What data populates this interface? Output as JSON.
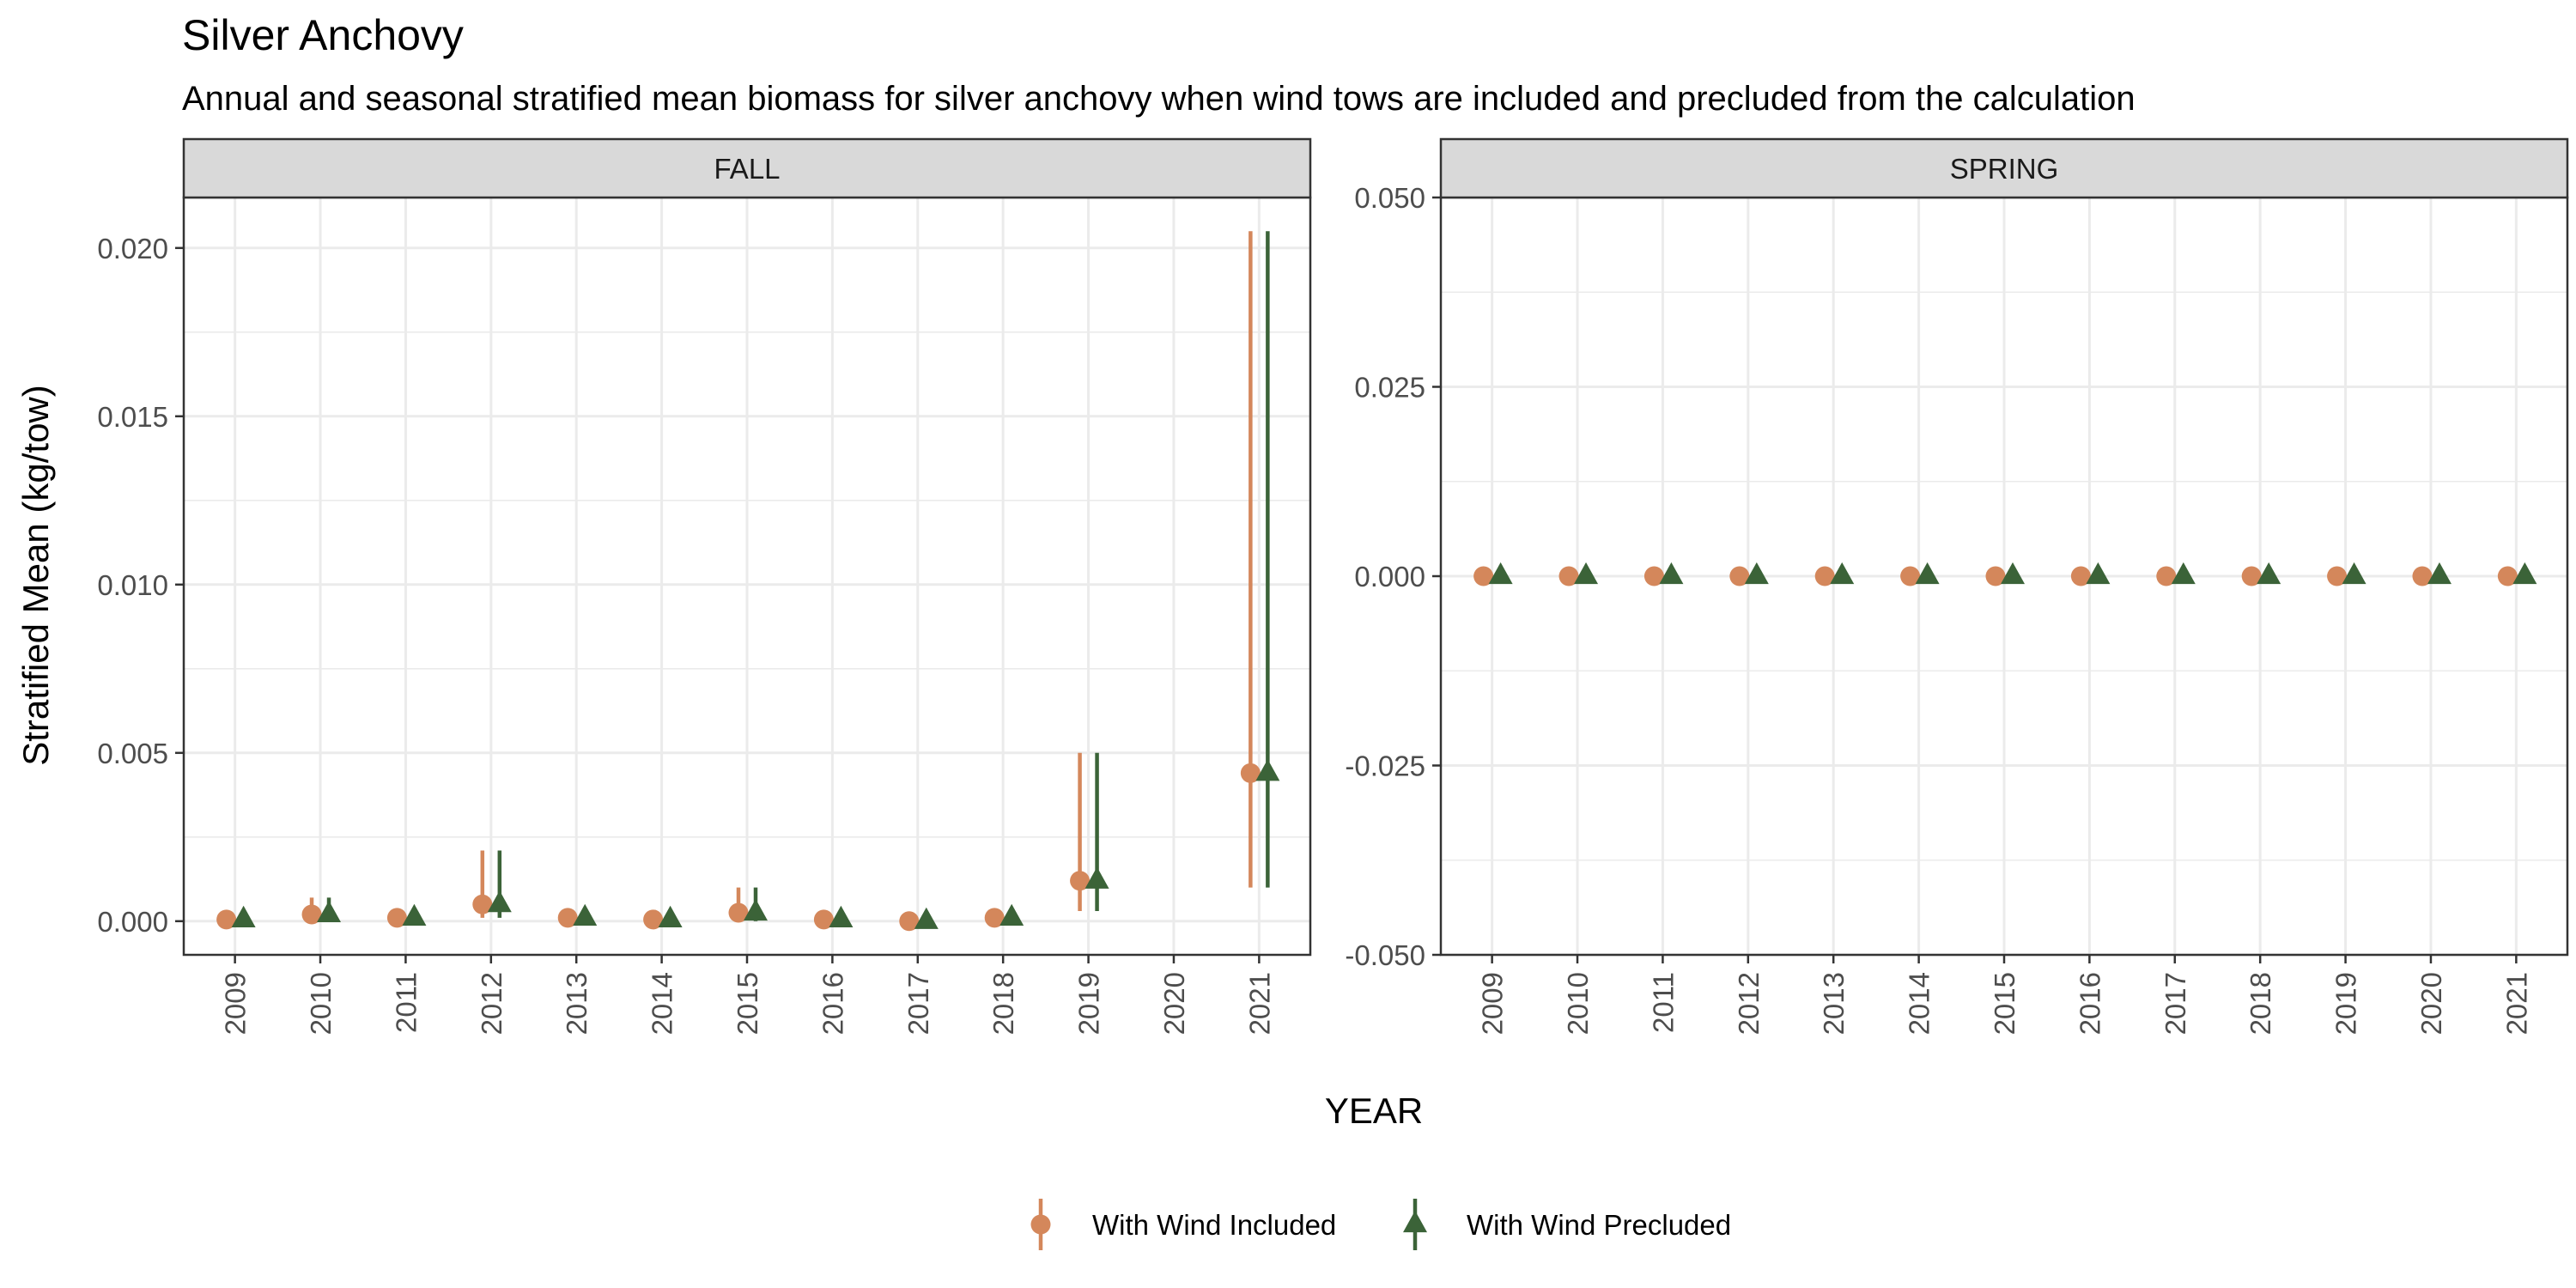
{
  "title": "Silver Anchovy",
  "subtitle": "Annual and seasonal stratified mean biomass for silver anchovy when wind tows are included and precluded from the calculation",
  "colors": {
    "included": "#D4875B",
    "precluded": "#3B6338",
    "strip_fill": "#D9D9D9",
    "grid": "#EBEBEB",
    "frame": "#333333",
    "tick_text": "#4D4D4D"
  },
  "chart_data": {
    "type": "scatter",
    "xlabel": "YEAR",
    "ylabel": "Stratified Mean (kg/tow)",
    "legend": {
      "position": "bottom",
      "entries": [
        "With Wind Included",
        "With Wind Precluded"
      ]
    },
    "grid": true,
    "panels": [
      {
        "name": "FALL",
        "ylim": [
          -0.001,
          0.0215
        ],
        "yticks": [
          0.0,
          0.005,
          0.01,
          0.015,
          0.02
        ],
        "ytick_labels": [
          "0.000",
          "0.005",
          "0.010",
          "0.015",
          "0.020"
        ],
        "x": [
          "2009",
          "2010",
          "2011",
          "2012",
          "2013",
          "2014",
          "2015",
          "2016",
          "2017",
          "2018",
          "2019",
          "2020",
          "2021"
        ],
        "series": [
          {
            "name": "With Wind Included",
            "marker": "circle",
            "values": [
              5e-05,
              0.0002,
              0.0001,
              0.0005,
              0.0001,
              5e-05,
              0.00025,
              5e-05,
              0.0,
              0.0001,
              0.0012,
              null,
              0.0044
            ],
            "lower": [
              0.0,
              0.0,
              0.0,
              0.0001,
              0.0,
              0.0,
              0.0,
              0.0,
              0.0,
              0.0,
              0.0003,
              null,
              0.001
            ],
            "upper": [
              0.0001,
              0.0007,
              0.0002,
              0.0021,
              0.0002,
              0.0001,
              0.001,
              0.0001,
              5e-05,
              0.0002,
              0.005,
              null,
              0.0205
            ]
          },
          {
            "name": "With Wind Precluded",
            "marker": "triangle",
            "values": [
              5e-05,
              0.0002,
              0.0001,
              0.0005,
              0.0001,
              5e-05,
              0.00025,
              5e-05,
              0.0,
              0.0001,
              0.0012,
              null,
              0.0044
            ],
            "lower": [
              0.0,
              0.0,
              0.0,
              0.0001,
              0.0,
              0.0,
              0.0,
              0.0,
              0.0,
              0.0,
              0.0003,
              null,
              0.001
            ],
            "upper": [
              0.0001,
              0.0007,
              0.0002,
              0.0021,
              0.0002,
              0.0001,
              0.001,
              0.0001,
              5e-05,
              0.0002,
              0.005,
              null,
              0.0205
            ]
          }
        ]
      },
      {
        "name": "SPRING",
        "ylim": [
          -0.05,
          0.05
        ],
        "yticks": [
          -0.05,
          -0.025,
          0.0,
          0.025,
          0.05
        ],
        "ytick_labels": [
          "-0.050",
          "-0.025",
          "0.000",
          "0.025",
          "0.050"
        ],
        "x": [
          "2009",
          "2010",
          "2011",
          "2012",
          "2013",
          "2014",
          "2015",
          "2016",
          "2017",
          "2018",
          "2019",
          "2020",
          "2021"
        ],
        "series": [
          {
            "name": "With Wind Included",
            "marker": "circle",
            "values": [
              0,
              0,
              0,
              0,
              0,
              0,
              0,
              0,
              0,
              0,
              0,
              0,
              0
            ],
            "lower": [
              0,
              0,
              0,
              0,
              0,
              0,
              0,
              0,
              0,
              0,
              0,
              0,
              0
            ],
            "upper": [
              0,
              0,
              0,
              0,
              0,
              0,
              0,
              0,
              0,
              0,
              0,
              0,
              0
            ]
          },
          {
            "name": "With Wind Precluded",
            "marker": "triangle",
            "values": [
              0,
              0,
              0,
              0,
              0,
              0,
              0,
              0,
              0,
              0,
              0,
              0,
              0
            ],
            "lower": [
              0,
              0,
              0,
              0,
              0,
              0,
              0,
              0,
              0,
              0,
              0,
              0,
              0
            ],
            "upper": [
              0,
              0,
              0,
              0,
              0,
              0,
              0,
              0,
              0,
              0,
              0,
              0,
              0
            ]
          }
        ]
      }
    ]
  }
}
